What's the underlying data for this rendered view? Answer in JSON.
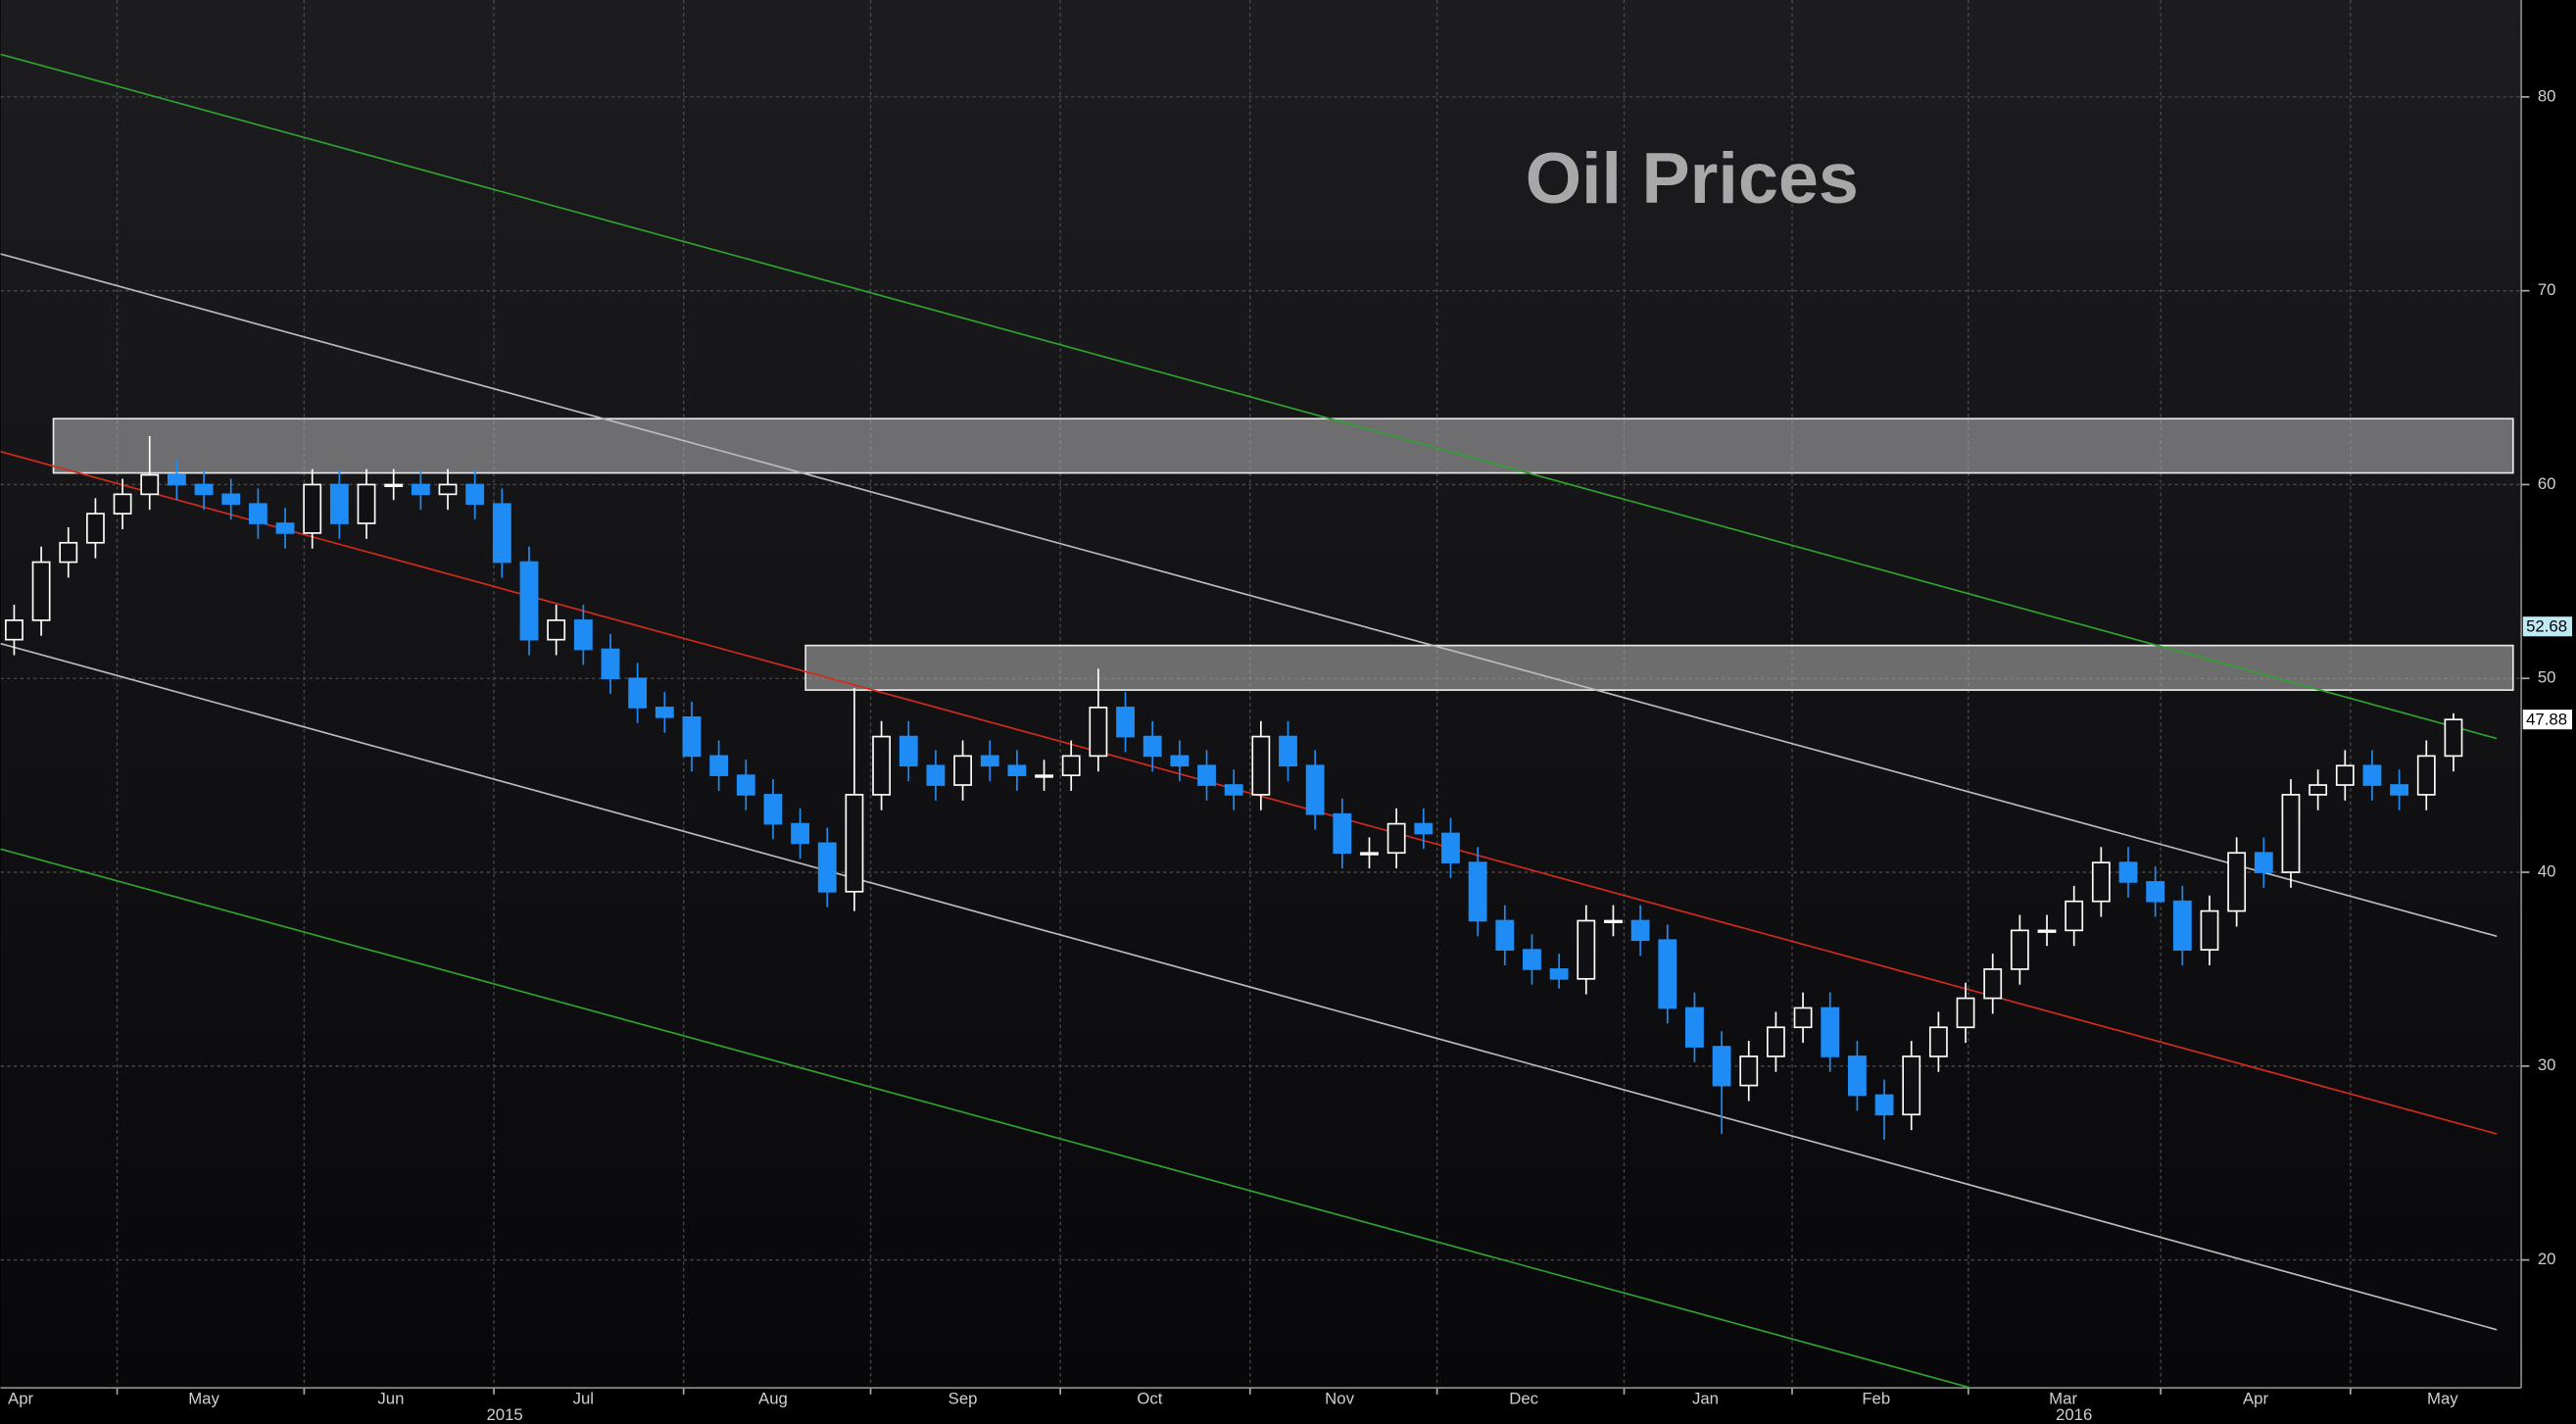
{
  "chart_data": {
    "type": "candlestick",
    "title": "Oil Prices",
    "x": [
      0,
      1,
      2,
      3,
      4,
      5,
      6,
      7,
      8,
      9,
      10,
      11,
      12,
      13,
      14,
      15,
      16,
      17,
      18,
      19,
      20,
      21,
      22,
      23,
      24,
      25,
      26,
      27,
      28,
      29,
      30,
      31,
      32,
      33,
      34,
      35,
      36,
      37,
      38,
      39,
      40,
      41,
      42,
      43,
      44,
      45,
      46,
      47,
      48,
      49,
      50,
      51,
      52,
      53,
      54,
      55,
      56,
      57,
      58,
      59,
      60,
      61,
      62,
      63,
      64,
      65,
      66,
      67,
      68,
      69,
      70,
      71,
      72,
      73,
      74,
      75,
      76,
      77,
      78,
      79,
      80,
      81,
      82,
      83,
      84,
      85,
      86,
      87,
      88,
      89,
      90
    ],
    "open": [
      52,
      53,
      56,
      57,
      58.5,
      59.5,
      60.5,
      60,
      59.5,
      59,
      58,
      57.5,
      60,
      58,
      60,
      60,
      59.5,
      60,
      59,
      56,
      52,
      53,
      51.5,
      50,
      48.5,
      48,
      46,
      45,
      44,
      42.5,
      41.5,
      39,
      44,
      47,
      45.5,
      44.5,
      46,
      45.5,
      45,
      45,
      46,
      48.5,
      47,
      46,
      45.5,
      44.5,
      44,
      47,
      45.5,
      43,
      41,
      41,
      42.5,
      42,
      40.5,
      37.5,
      36,
      35,
      34.5,
      37.5,
      37.5,
      36.5,
      33,
      31,
      29,
      30.5,
      32,
      33,
      30.5,
      28.5,
      27.5,
      30.5,
      32,
      33.5,
      35,
      37,
      37,
      38.5,
      40.5,
      39.5,
      38.5,
      36,
      38,
      41,
      40,
      44,
      44.5,
      45.5,
      44.5,
      44,
      46
    ],
    "high": [
      53.8,
      56.8,
      57.8,
      59.3,
      60.3,
      62.5,
      61.3,
      60.8,
      60.3,
      59.8,
      58.8,
      60.8,
      60.8,
      60.8,
      60.8,
      60.8,
      60.8,
      60.8,
      59.8,
      56.8,
      53.8,
      53.8,
      52.3,
      50.8,
      49.3,
      48.8,
      46.8,
      45.8,
      44.8,
      43.3,
      42.3,
      49.5,
      47.8,
      47.8,
      46.3,
      46.8,
      46.8,
      46.3,
      45.8,
      46.8,
      50.5,
      49.3,
      47.8,
      46.8,
      46.3,
      45.3,
      47.8,
      47.8,
      46.3,
      43.8,
      41.8,
      43.3,
      43.3,
      42.8,
      41.3,
      38.3,
      36.8,
      35.8,
      38.3,
      38.3,
      38.3,
      37.3,
      33.8,
      31.8,
      31.3,
      32.8,
      33.8,
      33.8,
      31.3,
      29.3,
      31.3,
      32.8,
      34.3,
      35.8,
      37.8,
      37.8,
      39.3,
      41.3,
      41.3,
      40.3,
      39.3,
      38.8,
      41.8,
      41.8,
      44.8,
      45.3,
      46.3,
      46.3,
      45.3,
      46.8,
      48.2
    ],
    "low": [
      51.2,
      52.2,
      55.2,
      56.2,
      57.7,
      58.7,
      59.2,
      58.7,
      58.2,
      57.2,
      56.7,
      56.7,
      57.2,
      57.2,
      59.2,
      58.7,
      58.7,
      58.2,
      55.2,
      51.2,
      51.2,
      50.7,
      49.2,
      47.7,
      47.2,
      45.2,
      44.2,
      43.2,
      41.7,
      40.7,
      38.2,
      38,
      43.2,
      44.7,
      43.7,
      43.7,
      44.7,
      44.2,
      44.2,
      44.2,
      45.2,
      46.2,
      45.2,
      44.7,
      43.7,
      43.2,
      43.2,
      44.7,
      42.2,
      40.2,
      40.2,
      40.2,
      41.2,
      39.7,
      36.7,
      35.2,
      34.2,
      34,
      33.7,
      36.7,
      35.7,
      32.2,
      30.2,
      26.5,
      28.2,
      29.7,
      31.2,
      29.7,
      27.7,
      26.2,
      26.7,
      29.7,
      31.2,
      32.7,
      34.2,
      36.2,
      36.2,
      37.7,
      38.7,
      37.7,
      35.2,
      35.2,
      37.2,
      39.2,
      39.2,
      43.2,
      43.7,
      43.7,
      43.2,
      43.2,
      45.2
    ],
    "close": [
      53,
      56,
      57,
      58.5,
      59.5,
      60.5,
      60,
      59.5,
      59,
      58,
      57.5,
      60,
      58,
      60,
      60,
      59.5,
      60,
      59,
      56,
      52,
      53,
      51.5,
      50,
      48.5,
      48,
      46,
      45,
      44,
      42.5,
      41.5,
      39,
      44,
      47,
      45.5,
      44.5,
      46,
      45.5,
      45,
      45,
      46,
      48.5,
      47,
      46,
      45.5,
      44.5,
      44,
      47,
      45.5,
      43,
      41,
      41,
      42.5,
      42,
      40.5,
      37.5,
      36,
      35,
      34.5,
      37.5,
      37.5,
      36.5,
      33,
      31,
      29,
      30.5,
      32,
      33,
      30.5,
      28.5,
      27.5,
      30.5,
      32,
      33.5,
      35,
      37,
      37,
      38.5,
      40.5,
      39.5,
      38.5,
      36,
      38,
      41,
      40,
      44,
      44.5,
      45.5,
      44.5,
      44,
      46,
      47.88
    ],
    "up_color": "#ffffff",
    "down_color": "#1f8cf5",
    "xlim": [
      -0.5,
      92.5
    ],
    "xticks": [
      {
        "value": 0.24,
        "label": "Apr"
      },
      {
        "value": 7,
        "label": "May"
      },
      {
        "value": 13.9,
        "label": "Jun"
      },
      {
        "value": 21,
        "label": "Jul"
      },
      {
        "value": 28,
        "label": "Aug"
      },
      {
        "value": 35,
        "label": "Sep"
      },
      {
        "value": 41.9,
        "label": "Oct"
      },
      {
        "value": 48.9,
        "label": "Nov"
      },
      {
        "value": 55.7,
        "label": "Dec"
      },
      {
        "value": 62.4,
        "label": "Jan"
      },
      {
        "value": 68.7,
        "label": "Feb"
      },
      {
        "value": 75.6,
        "label": "Mar"
      },
      {
        "value": 82.7,
        "label": "Apr"
      },
      {
        "value": 89.6,
        "label": "May"
      }
    ],
    "xgrid": [
      3.8,
      10.7,
      17.7,
      24.7,
      31.6,
      38.6,
      45.6,
      52.5,
      59.4,
      65.6,
      72.1,
      79.2,
      86.2
    ],
    "year_labels": [
      {
        "value": 18.1,
        "label": "2015"
      },
      {
        "value": 76,
        "label": "2016"
      }
    ],
    "ylim": [
      13.4,
      85
    ],
    "yticks": [
      20,
      30,
      40,
      50,
      60,
      70,
      80
    ],
    "grid": true,
    "trendlines": [
      {
        "color": "#2ea32e",
        "x": [
          -0.5,
          91.6
        ],
        "y": [
          82.2,
          46.9
        ]
      },
      {
        "color": "#bbbbbb",
        "x": [
          -0.5,
          91.6
        ],
        "y": [
          71.9,
          36.7
        ]
      },
      {
        "color": "#d42a1e",
        "x": [
          -0.5,
          91.6
        ],
        "y": [
          61.7,
          26.5
        ]
      },
      {
        "color": "#bbbbbb",
        "x": [
          -0.5,
          91.6
        ],
        "y": [
          51.8,
          16.4
        ]
      },
      {
        "color": "#2ea32e",
        "x": [
          -0.5,
          72.2
        ],
        "y": [
          41.2,
          13.4
        ]
      }
    ],
    "zones": [
      {
        "x": [
          1.45,
          92.2
        ],
        "y": [
          60.6,
          63.4
        ]
      },
      {
        "x": [
          29.2,
          92.2
        ],
        "y": [
          49.4,
          51.7
        ]
      }
    ],
    "price_tags": [
      {
        "value": 52.68,
        "color": "#bfe9f5"
      },
      {
        "value": 47.88,
        "color": "#ffffff"
      }
    ]
  }
}
